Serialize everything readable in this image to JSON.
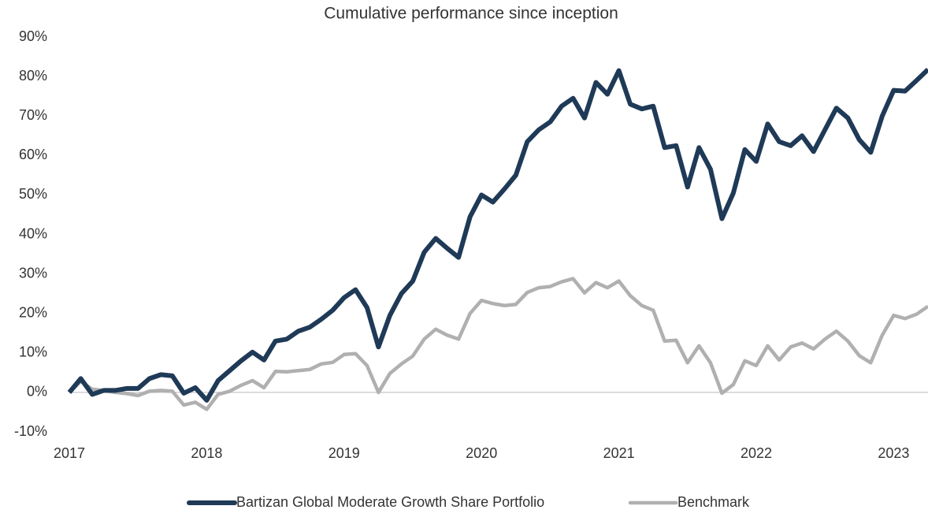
{
  "chart_data": {
    "type": "line",
    "title": "Cumulative performance since inception",
    "categories": [
      "2017",
      null,
      null,
      null,
      null,
      null,
      null,
      null,
      null,
      null,
      null,
      null,
      "2018",
      null,
      null,
      null,
      null,
      null,
      null,
      null,
      null,
      null,
      null,
      null,
      "2019",
      null,
      null,
      null,
      null,
      null,
      null,
      null,
      null,
      null,
      null,
      null,
      "2020",
      null,
      null,
      null,
      null,
      null,
      null,
      null,
      null,
      null,
      null,
      null,
      "2021",
      null,
      null,
      null,
      null,
      null,
      null,
      null,
      null,
      null,
      null,
      null,
      "2022",
      null,
      null,
      null,
      null,
      null,
      null,
      null,
      null,
      null,
      null,
      null,
      "2023",
      null,
      null,
      null
    ],
    "series": [
      {
        "name": "Bartizan Global Moderate Growth Share Portfolio",
        "color": "#1f3a57",
        "values": [
          0,
          3.5,
          -0.5,
          0.5,
          0.5,
          1,
          1,
          3.5,
          4.5,
          4.2,
          -0.2,
          1.2,
          -2,
          3,
          5.5,
          8,
          10.2,
          8.2,
          13,
          13.5,
          15.5,
          16.5,
          18.5,
          20.8,
          24,
          26,
          21.5,
          11.5,
          19.5,
          25,
          28.2,
          35.5,
          39,
          36.5,
          34.2,
          44.5,
          50,
          48.2,
          51.5,
          55,
          63.5,
          66.5,
          68.5,
          72.5,
          74.5,
          69.5,
          78.5,
          75.5,
          81.5,
          73,
          71.8,
          72.5,
          62,
          62.5,
          52,
          62,
          56.5,
          44,
          50.5,
          61.5,
          58.5,
          68,
          63.5,
          62.5,
          65,
          61,
          66.5,
          72,
          69.5,
          64,
          60.8,
          70,
          76.5,
          76.3,
          79,
          81.8
        ]
      },
      {
        "name": "Benchmark",
        "color": "#b0b0b0",
        "values": [
          0,
          2.8,
          0.8,
          0.5,
          0,
          -0.3,
          -0.8,
          0.3,
          0.5,
          0.3,
          -3.2,
          -2.5,
          -4.3,
          -0.5,
          0.3,
          1.8,
          3,
          1.2,
          5.3,
          5.2,
          5.5,
          5.8,
          7.2,
          7.6,
          9.6,
          9.8,
          6.8,
          0,
          4.8,
          7.2,
          9.2,
          13.5,
          16,
          14.5,
          13.5,
          20,
          23.3,
          22.5,
          22,
          22.3,
          25.3,
          26.5,
          26.8,
          28,
          28.8,
          25.2,
          27.8,
          26.5,
          28.2,
          24.5,
          22,
          20.8,
          13,
          13.2,
          7.5,
          11.8,
          7.5,
          -0.2,
          2,
          8,
          6.8,
          11.8,
          8.2,
          11.5,
          12.5,
          11,
          13.5,
          15.5,
          13,
          9.3,
          7.5,
          14.5,
          19.5,
          18.7,
          19.8,
          21.8
        ]
      }
    ],
    "ylim": [
      -10,
      90
    ],
    "yticks": [
      {
        "value": -10,
        "label": "-10%"
      },
      {
        "value": 0,
        "label": "0%"
      },
      {
        "value": 10,
        "label": "10%"
      },
      {
        "value": 20,
        "label": "20%"
      },
      {
        "value": 30,
        "label": "30%"
      },
      {
        "value": 40,
        "label": "40%"
      },
      {
        "value": 50,
        "label": "50%"
      },
      {
        "value": 60,
        "label": "60%"
      },
      {
        "value": 70,
        "label": "70%"
      },
      {
        "value": 80,
        "label": "80%"
      },
      {
        "value": 90,
        "label": "90%"
      }
    ],
    "legend": "bottom"
  }
}
